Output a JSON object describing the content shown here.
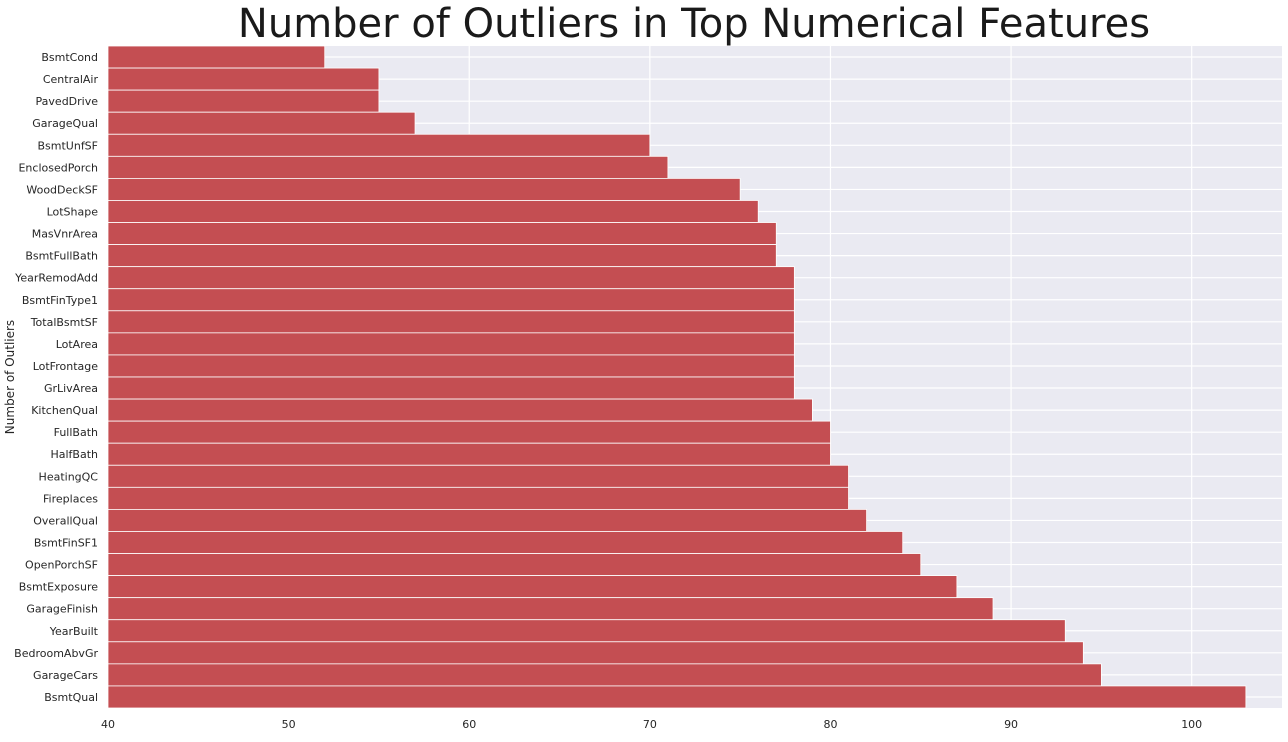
{
  "chart_data": {
    "type": "bar",
    "orientation": "horizontal",
    "title": "Number of Outliers in Top Numerical Features",
    "xlabel": "",
    "ylabel": "Number of Outliers",
    "xlim": [
      40,
      105
    ],
    "xticks": [
      40,
      50,
      60,
      70,
      80,
      90,
      100
    ],
    "grid": true,
    "background_color": "#eaeaf2",
    "bar_color": "#c44e52",
    "categories": [
      "BsmtCond",
      "CentralAir",
      "PavedDrive",
      "GarageQual",
      "BsmtUnfSF",
      "EnclosedPorch",
      "WoodDeckSF",
      "LotShape",
      "MasVnrArea",
      "BsmtFullBath",
      "YearRemodAdd",
      "BsmtFinType1",
      "TotalBsmtSF",
      "LotArea",
      "LotFrontage",
      "GrLivArea",
      "KitchenQual",
      "FullBath",
      "HalfBath",
      "HeatingQC",
      "Fireplaces",
      "OverallQual",
      "BsmtFinSF1",
      "OpenPorchSF",
      "BsmtExposure",
      "GarageFinish",
      "YearBuilt",
      "BedroomAbvGr",
      "GarageCars",
      "BsmtQual"
    ],
    "values": [
      52,
      55,
      55,
      57,
      70,
      71,
      75,
      76,
      77,
      77,
      78,
      78,
      78,
      78,
      78,
      78,
      79,
      80,
      80,
      81,
      81,
      82,
      84,
      85,
      87,
      89,
      93,
      94,
      95,
      103
    ]
  }
}
